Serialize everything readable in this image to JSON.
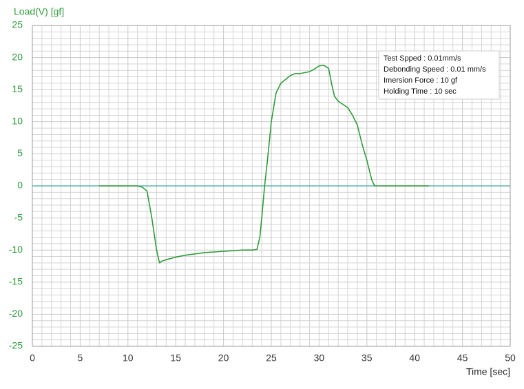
{
  "chart_data": {
    "type": "line",
    "ylabel": "Load(V) [gf]",
    "xlabel": "Time [sec]",
    "annotations": [
      "Test Spped : 0.01mm/s",
      "Debonding Speed : 0.01 mm/s",
      "Imersion Force : 10 gf",
      "Holding Time : 10 sec"
    ],
    "xlim": [
      0,
      50
    ],
    "xticks": [
      0,
      5,
      10,
      15,
      20,
      25,
      30,
      35,
      40,
      45,
      50
    ],
    "ylim": [
      -25,
      25
    ],
    "yticks": [
      -25,
      -20,
      -15,
      -10,
      -5,
      0,
      5,
      10,
      15,
      20,
      25
    ],
    "grid": true,
    "zero_line_color": "#3aa6a0",
    "series": [
      {
        "name": "Load",
        "color": "#2e9b3a",
        "x": [
          7,
          11,
          11.5,
          12,
          12.5,
          13,
          13.3,
          13.6,
          14,
          15,
          16,
          17,
          18,
          19,
          20,
          21,
          22,
          23,
          23.5,
          23.8,
          24,
          24.3,
          24.6,
          25,
          25.5,
          26,
          27,
          27.5,
          28,
          29,
          29.5,
          30,
          30.5,
          31,
          31.3,
          31.6,
          32,
          33,
          33.5,
          34,
          34.5,
          35,
          35.5,
          35.8,
          41.5
        ],
        "values": [
          0,
          0,
          -0.2,
          -0.8,
          -5,
          -10,
          -12,
          -11.7,
          -11.5,
          -11.1,
          -10.8,
          -10.6,
          -10.4,
          -10.3,
          -10.2,
          -10.1,
          -10,
          -10,
          -9.9,
          -8,
          -5,
          0,
          4,
          10,
          14.5,
          16,
          17.2,
          17.5,
          17.5,
          17.8,
          18.2,
          18.7,
          18.8,
          18.3,
          16,
          14,
          13.2,
          12.2,
          11,
          9.5,
          6.5,
          4,
          1,
          0,
          0
        ]
      }
    ]
  }
}
